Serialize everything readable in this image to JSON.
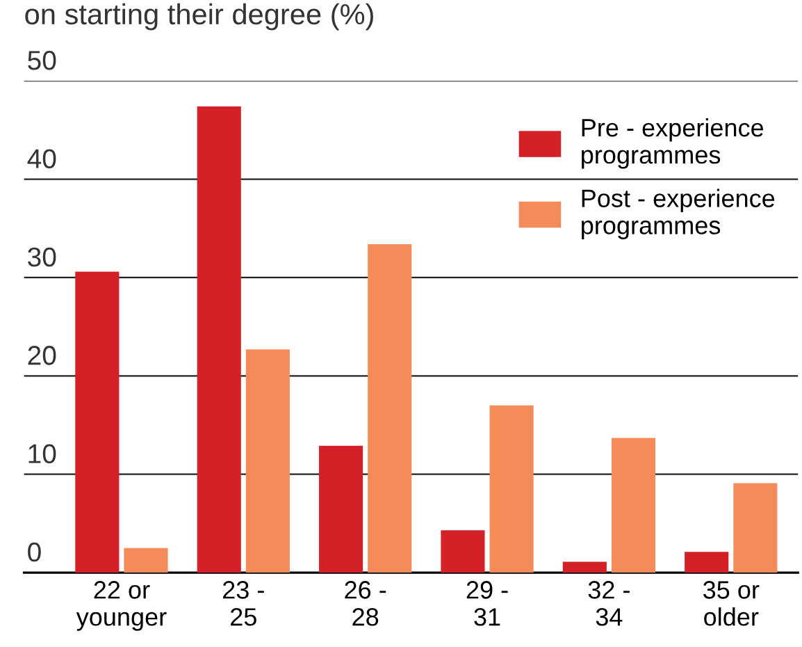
{
  "chart_data": {
    "type": "bar",
    "title": "on starting their degree (%)",
    "categories": [
      "22 or\nyounger",
      "23 -\n25",
      "26 -\n28",
      "29 -\n31",
      "32 -\n34",
      "35 or\nolder"
    ],
    "series": [
      {
        "name": "Pre - experience\nprogrammes",
        "color": "#d42027",
        "values": [
          30.6,
          47.4,
          12.9,
          4.3,
          1.1,
          2.1
        ]
      },
      {
        "name": "Post - experience\nprogrammes",
        "color": "#f58b58",
        "values": [
          2.5,
          22.7,
          33.4,
          17.0,
          13.7,
          9.1
        ]
      }
    ],
    "ylim": [
      0,
      50
    ],
    "yticks": [
      0,
      10,
      20,
      30,
      40,
      50
    ],
    "grid": "y",
    "legend": "top right"
  }
}
